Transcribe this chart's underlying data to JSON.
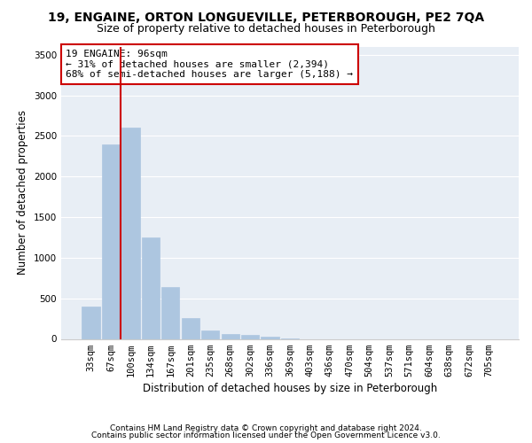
{
  "title1": "19, ENGAINE, ORTON LONGUEVILLE, PETERBOROUGH, PE2 7QA",
  "title2": "Size of property relative to detached houses in Peterborough",
  "xlabel": "Distribution of detached houses by size in Peterborough",
  "ylabel": "Number of detached properties",
  "footnote1": "Contains HM Land Registry data © Crown copyright and database right 2024.",
  "footnote2": "Contains public sector information licensed under the Open Government Licence v3.0.",
  "categories": [
    "33sqm",
    "67sqm",
    "100sqm",
    "134sqm",
    "167sqm",
    "201sqm",
    "235sqm",
    "268sqm",
    "302sqm",
    "336sqm",
    "369sqm",
    "403sqm",
    "436sqm",
    "470sqm",
    "504sqm",
    "537sqm",
    "571sqm",
    "604sqm",
    "638sqm",
    "672sqm",
    "705sqm"
  ],
  "values": [
    400,
    2400,
    2600,
    1250,
    640,
    260,
    105,
    55,
    45,
    30,
    5,
    0,
    0,
    0,
    0,
    0,
    0,
    0,
    0,
    0,
    0
  ],
  "bar_color": "#adc6e0",
  "bar_edge_color": "#adc6e0",
  "background_color": "#e8eef5",
  "grid_color": "#ffffff",
  "vline_color": "#cc0000",
  "annotation_text": "19 ENGAINE: 96sqm\n← 31% of detached houses are smaller (2,394)\n68% of semi-detached houses are larger (5,188) →",
  "annotation_box_color": "#ffffff",
  "annotation_box_edge": "#cc0000",
  "ylim": [
    0,
    3600
  ],
  "yticks": [
    0,
    500,
    1000,
    1500,
    2000,
    2500,
    3000,
    3500
  ],
  "title1_fontsize": 10,
  "title2_fontsize": 9,
  "xlabel_fontsize": 8.5,
  "ylabel_fontsize": 8.5,
  "tick_fontsize": 7.5,
  "annotation_fontsize": 8,
  "footnote_fontsize": 6.5
}
